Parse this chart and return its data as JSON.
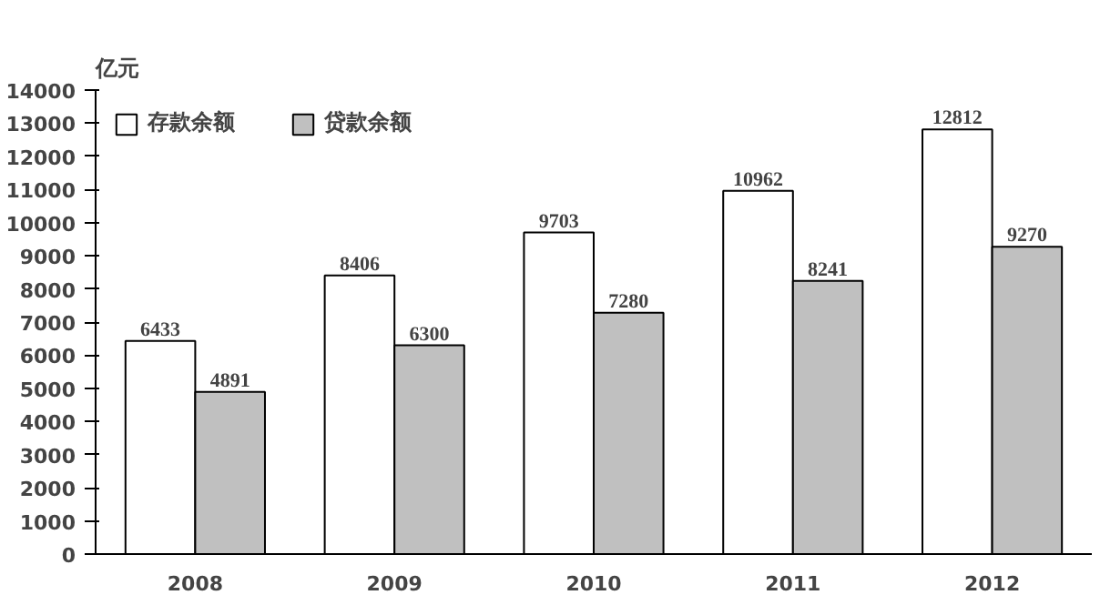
{
  "chart_data": {
    "type": "bar",
    "ylabel": "亿元",
    "categories": [
      "2008",
      "2009",
      "2010",
      "2011",
      "2012"
    ],
    "series": [
      {
        "name": "存款余额",
        "color": "#ffffff",
        "values": [
          6433,
          8406,
          9703,
          10962,
          12812
        ]
      },
      {
        "name": "贷款余额",
        "color": "#c0c0c0",
        "values": [
          4891,
          6300,
          7280,
          8241,
          9270
        ]
      }
    ],
    "ylim": [
      0,
      14000
    ],
    "yticks": [
      0,
      1000,
      2000,
      3000,
      4000,
      5000,
      6000,
      7000,
      8000,
      9000,
      10000,
      11000,
      12000,
      13000,
      14000
    ],
    "data_labels": true,
    "legend": "top left",
    "grid": false
  }
}
